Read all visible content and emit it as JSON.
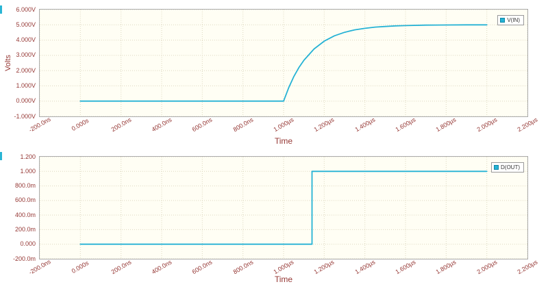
{
  "colors": {
    "trace": "#25b2d5",
    "plot_bg": "#fffef4",
    "grid": "#ded8c0",
    "border": "#ababab",
    "tick_text": "#953734",
    "accent": "#2ab5d4"
  },
  "chart_data": [
    {
      "type": "line",
      "legend": "V(IN)",
      "ylabel": "Volts",
      "xlabel": "Time",
      "x_unit": "µs",
      "xlim": [
        -0.2,
        2.2
      ],
      "ylim": [
        -1,
        6
      ],
      "grid": true,
      "legend_position": "top-right",
      "xticks": [
        {
          "v": -0.2,
          "label": "-200.0ns"
        },
        {
          "v": 0.0,
          "label": "0.000s"
        },
        {
          "v": 0.2,
          "label": "200.0ns"
        },
        {
          "v": 0.4,
          "label": "400.0ns"
        },
        {
          "v": 0.6,
          "label": "600.0ns"
        },
        {
          "v": 0.8,
          "label": "800.0ns"
        },
        {
          "v": 1.0,
          "label": "1.000µs"
        },
        {
          "v": 1.2,
          "label": "1.200µs"
        },
        {
          "v": 1.4,
          "label": "1.400µs"
        },
        {
          "v": 1.6,
          "label": "1.600µs"
        },
        {
          "v": 1.8,
          "label": "1.800µs"
        },
        {
          "v": 2.0,
          "label": "2.000µs"
        },
        {
          "v": 2.2,
          "label": "2.200µs"
        }
      ],
      "yticks": [
        {
          "v": -1,
          "label": "-1.000V"
        },
        {
          "v": 0,
          "label": "0.000V"
        },
        {
          "v": 1,
          "label": "1.000V"
        },
        {
          "v": 2,
          "label": "2.000V"
        },
        {
          "v": 3,
          "label": "3.000V"
        },
        {
          "v": 4,
          "label": "4.000V"
        },
        {
          "v": 5,
          "label": "5.000V"
        },
        {
          "v": 6,
          "label": "6.000V"
        }
      ],
      "series": [
        {
          "name": "V(IN)",
          "points": [
            [
              0,
              0
            ],
            [
              0.2,
              0
            ],
            [
              0.4,
              0
            ],
            [
              0.6,
              0
            ],
            [
              0.8,
              0
            ],
            [
              0.95,
              0
            ],
            [
              1.0,
              0
            ],
            [
              1.025,
              0.87
            ],
            [
              1.05,
              1.6
            ],
            [
              1.075,
              2.19
            ],
            [
              1.1,
              2.68
            ],
            [
              1.15,
              3.42
            ],
            [
              1.2,
              3.93
            ],
            [
              1.25,
              4.28
            ],
            [
              1.3,
              4.51
            ],
            [
              1.35,
              4.67
            ],
            [
              1.4,
              4.77
            ],
            [
              1.45,
              4.85
            ],
            [
              1.5,
              4.89
            ],
            [
              1.55,
              4.93
            ],
            [
              1.6,
              4.95
            ],
            [
              1.7,
              4.98
            ],
            [
              1.8,
              4.99
            ],
            [
              1.9,
              5.0
            ],
            [
              2.0,
              5.0
            ]
          ]
        }
      ]
    },
    {
      "type": "line",
      "legend": "D(OUT)",
      "ylabel": "",
      "xlabel": "Time",
      "x_unit": "µs",
      "xlim": [
        -0.2,
        2.2
      ],
      "ylim": [
        -0.2,
        1.2
      ],
      "grid": true,
      "legend_position": "top-right",
      "xticks": [
        {
          "v": -0.2,
          "label": "-200.0ns"
        },
        {
          "v": 0.0,
          "label": "0.000s"
        },
        {
          "v": 0.2,
          "label": "200.0ns"
        },
        {
          "v": 0.4,
          "label": "400.0ns"
        },
        {
          "v": 0.6,
          "label": "600.0ns"
        },
        {
          "v": 0.8,
          "label": "800.0ns"
        },
        {
          "v": 1.0,
          "label": "1.000µs"
        },
        {
          "v": 1.2,
          "label": "1.200µs"
        },
        {
          "v": 1.4,
          "label": "1.400µs"
        },
        {
          "v": 1.6,
          "label": "1.600µs"
        },
        {
          "v": 1.8,
          "label": "1.800µs"
        },
        {
          "v": 2.0,
          "label": "2.000µs"
        },
        {
          "v": 2.2,
          "label": "2.200µs"
        }
      ],
      "yticks": [
        {
          "v": -0.2,
          "label": "-200.0m"
        },
        {
          "v": 0.0,
          "label": "0.000"
        },
        {
          "v": 0.2,
          "label": "200.0m"
        },
        {
          "v": 0.4,
          "label": "400.0m"
        },
        {
          "v": 0.6,
          "label": "600.0m"
        },
        {
          "v": 0.8,
          "label": "800.0m"
        },
        {
          "v": 1.0,
          "label": "1.000"
        },
        {
          "v": 1.2,
          "label": "1.200"
        }
      ],
      "series": [
        {
          "name": "D(OUT)",
          "points": [
            [
              0,
              0
            ],
            [
              1.14,
              0
            ],
            [
              1.14,
              1
            ],
            [
              2.0,
              1
            ]
          ]
        }
      ]
    }
  ]
}
